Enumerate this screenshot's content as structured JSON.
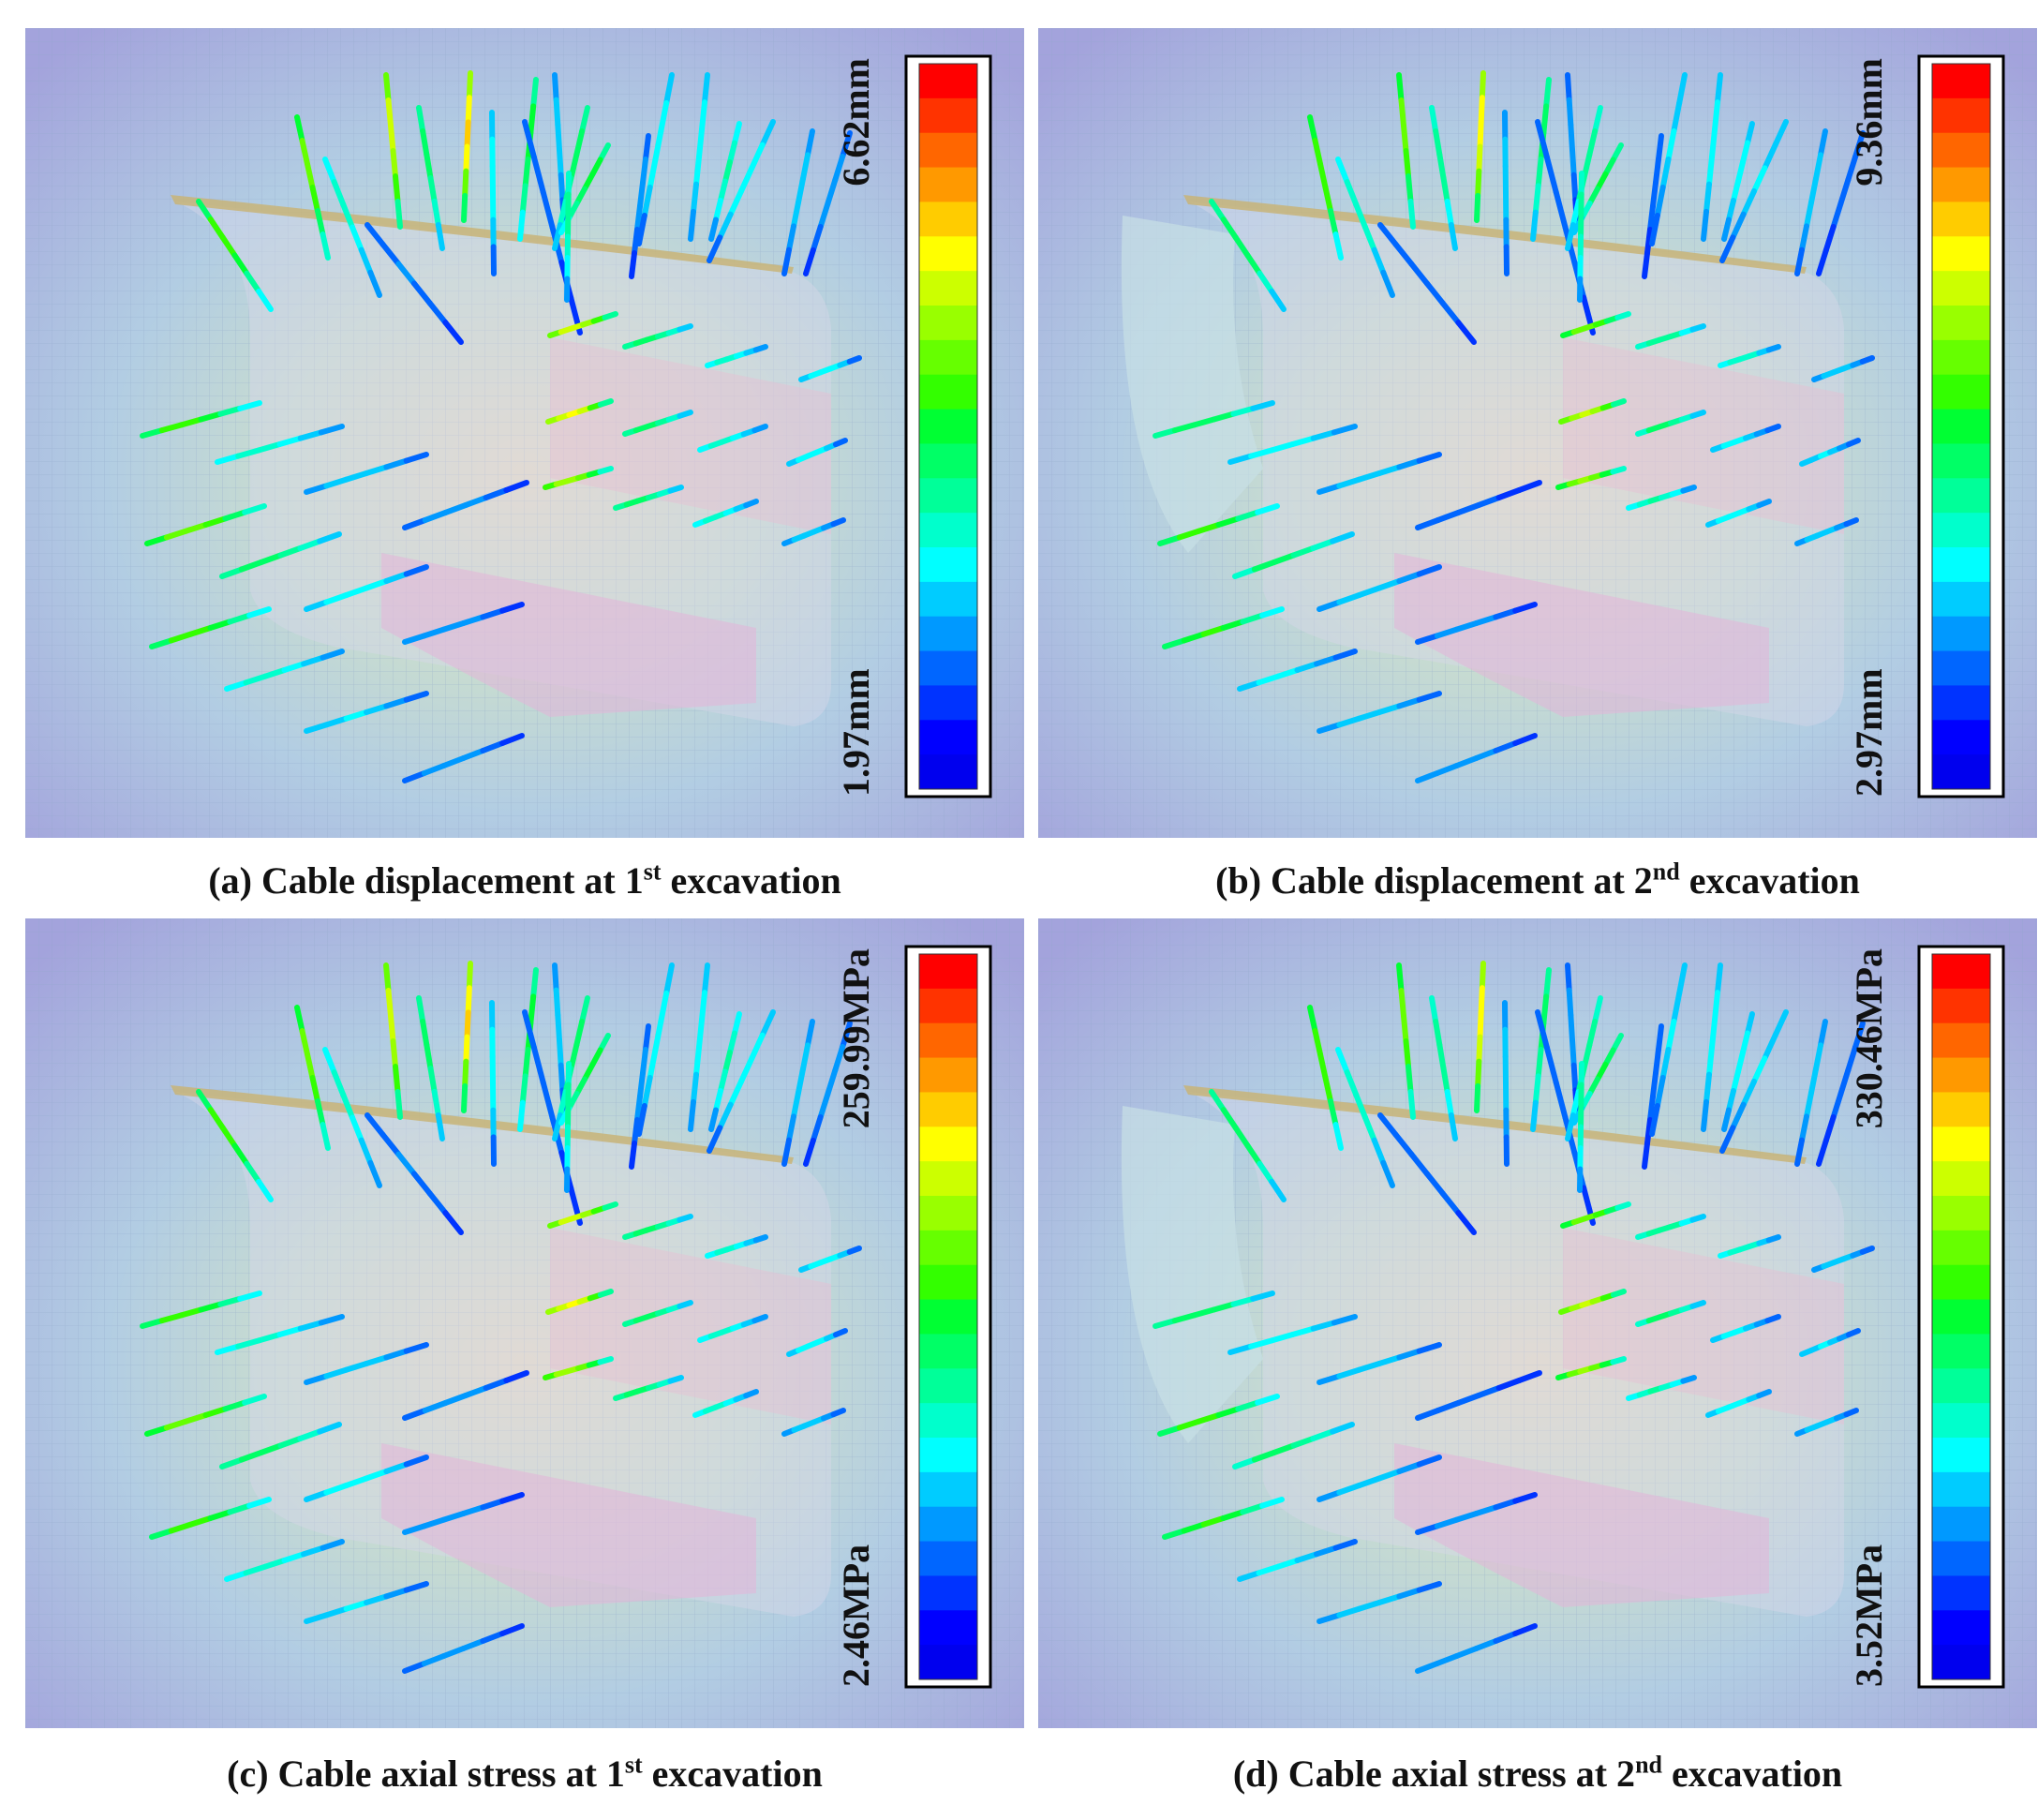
{
  "panels": [
    {
      "id": "a",
      "caption": {
        "prefix": "(a) Cable displacement at 1",
        "sup": "st",
        "suffix": " excavation"
      },
      "legend": {
        "max": "6.62mm",
        "min": "1.97mm"
      },
      "variant": 1
    },
    {
      "id": "b",
      "caption": {
        "prefix": "(b) Cable displacement at 2",
        "sup": "nd",
        "suffix": " excavation"
      },
      "legend": {
        "max": "9.36mm",
        "min": "2.97mm"
      },
      "variant": 2
    },
    {
      "id": "c",
      "caption": {
        "prefix": "(c) Cable axial stress at 1",
        "sup": "st",
        "suffix": " excavation"
      },
      "legend": {
        "max": "259.99MPa",
        "min": "2.46MPa"
      },
      "variant": 1
    },
    {
      "id": "d",
      "caption": {
        "prefix": "(d) Cable axial stress at 2",
        "sup": "nd",
        "suffix": " excavation"
      },
      "legend": {
        "max": "330.46MPa",
        "min": "3.52MPa"
      },
      "variant": 2
    }
  ],
  "colors": {
    "scale": [
      "#ff0000",
      "#ff3300",
      "#ff6600",
      "#ff9900",
      "#ffcc00",
      "#ffff00",
      "#ccff00",
      "#99ff00",
      "#66ff00",
      "#33ff00",
      "#00ff33",
      "#00ff66",
      "#00ff99",
      "#00ffcc",
      "#00ffff",
      "#00ccff",
      "#0099ff",
      "#0066ff",
      "#0033ff",
      "#0000ff",
      "#0000ee"
    ],
    "background": "#9a9ad8",
    "mesh": "#b7c6e0"
  }
}
